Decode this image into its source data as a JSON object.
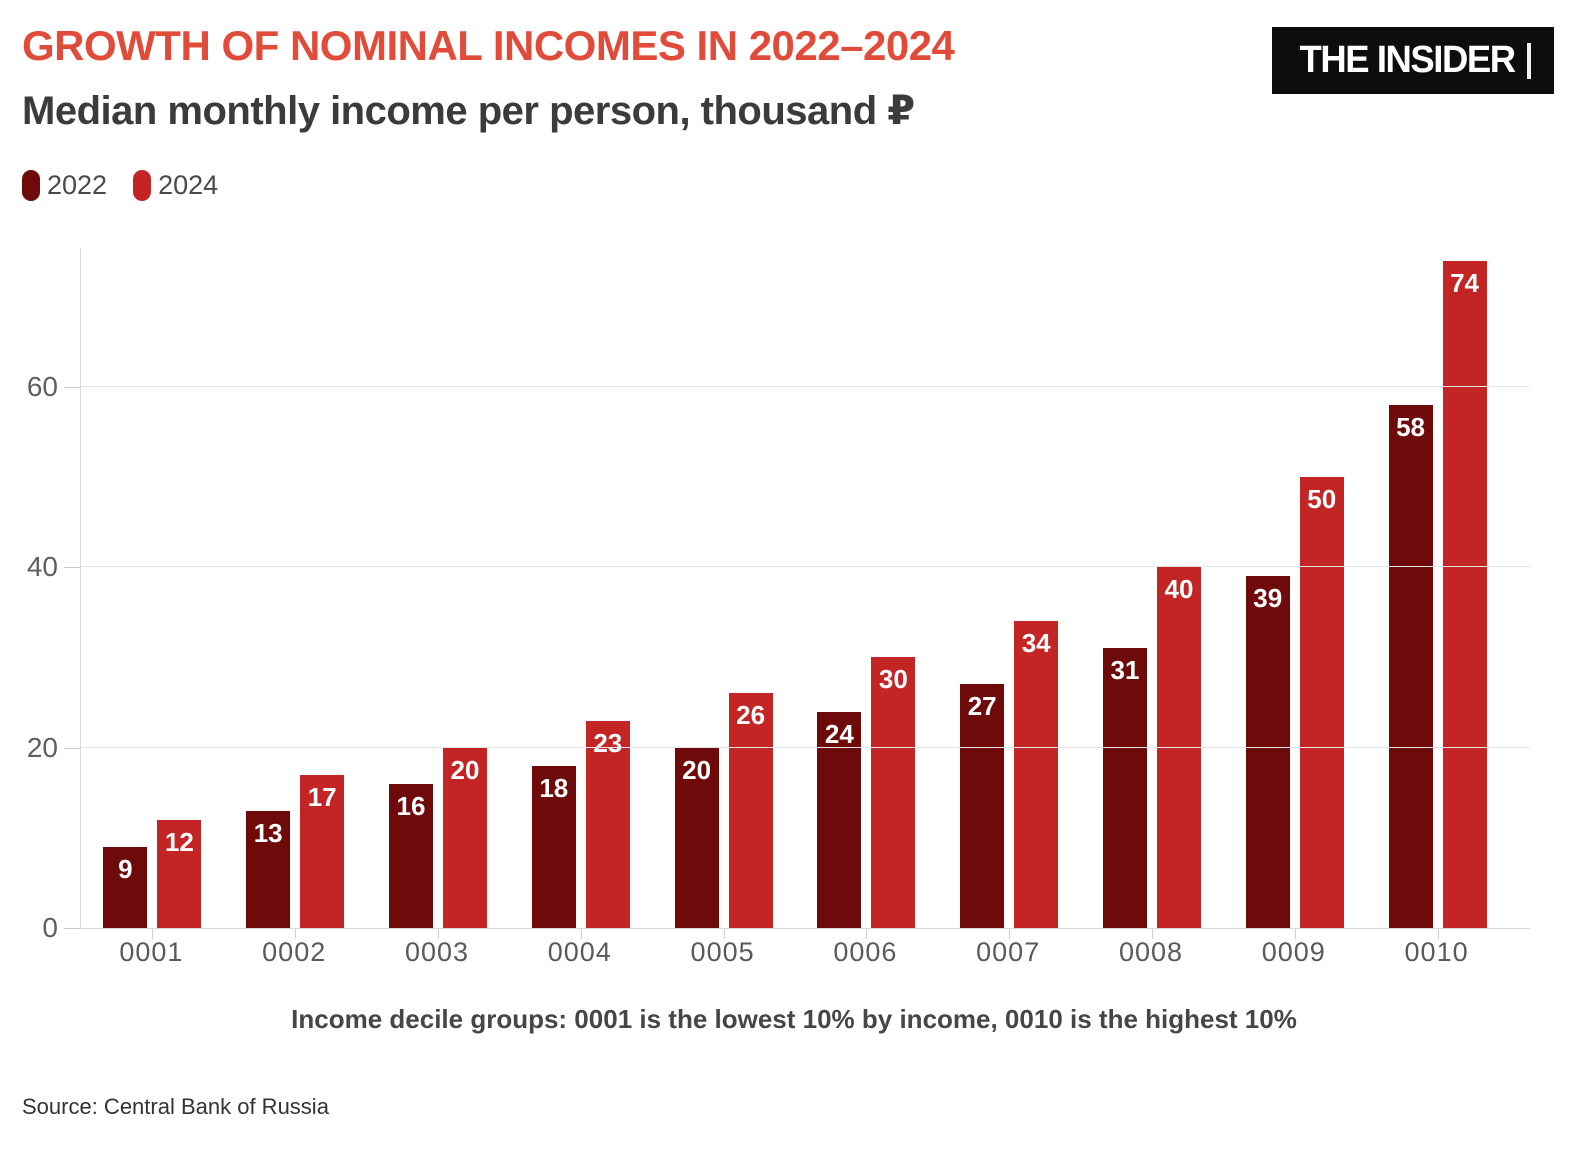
{
  "header": {
    "title": "GROWTH OF NOMINAL INCOMES IN 2022–2024",
    "subtitle": "Median monthly income per person, thousand ₽",
    "logo_text": "THE INSIDER"
  },
  "legend": {
    "items": [
      {
        "label": "2022",
        "color": "#6f0a0a"
      },
      {
        "label": "2024",
        "color": "#c32525"
      }
    ]
  },
  "chart_data": {
    "type": "bar",
    "title": "GROWTH OF NOMINAL INCOMES IN 2022–2024",
    "subtitle": "Median monthly income per person, thousand ₽",
    "categories": [
      "0001",
      "0002",
      "0003",
      "0004",
      "0005",
      "0006",
      "0007",
      "0008",
      "0009",
      "0010"
    ],
    "series": [
      {
        "name": "2022",
        "color": "#6f0a0a",
        "values": [
          9,
          13,
          16,
          18,
          20,
          24,
          27,
          31,
          39,
          58
        ]
      },
      {
        "name": "2024",
        "color": "#c32525",
        "values": [
          12,
          17,
          20,
          23,
          26,
          30,
          34,
          40,
          50,
          74
        ]
      }
    ],
    "xlabel": "",
    "ylabel": "",
    "ylim": [
      0,
      75.5
    ],
    "yticks": [
      0,
      20,
      40,
      60
    ],
    "grid": true,
    "value_labels": true,
    "legend_position": "top-left"
  },
  "caption": "Income decile groups: 0001 is the lowest 10% by income, 0010 is the highest 10%",
  "source": "Source: Central Bank of Russia",
  "colors": {
    "title_accent": "#e14b3a",
    "subtitle_text": "#3b3b3b",
    "series_2022": "#6f0a0a",
    "series_2024": "#c32525",
    "logo_background": "#0d0d0d",
    "logo_text": "#ffffff",
    "axis_label": "#5a5a5a",
    "gridline": "#e5e5e5",
    "bar_value_text": "#ffffff"
  }
}
